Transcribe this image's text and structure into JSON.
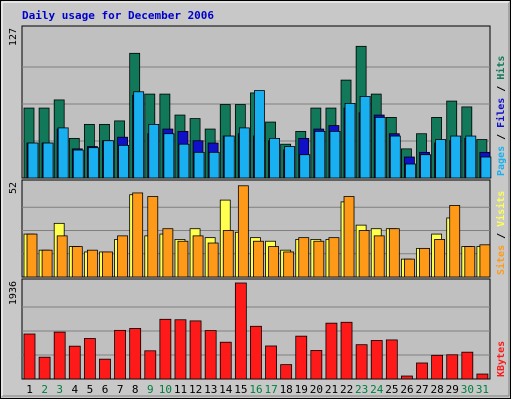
{
  "chart_data": {
    "type": "bar",
    "title": "Daily usage for December 2006",
    "days": [
      "1",
      "2",
      "3",
      "4",
      "5",
      "6",
      "7",
      "8",
      "9",
      "10",
      "11",
      "12",
      "13",
      "14",
      "15",
      "16",
      "17",
      "18",
      "19",
      "20",
      "21",
      "22",
      "23",
      "24",
      "25",
      "26",
      "27",
      "28",
      "29",
      "30",
      "31"
    ],
    "weekend_days": [
      "2",
      "3",
      "9",
      "10",
      "16",
      "17",
      "23",
      "24",
      "30",
      "31"
    ],
    "panels": [
      {
        "id": "hits",
        "ymax_label": "127",
        "ymax": 127,
        "series": [
          {
            "name": "Hits",
            "color": "#12785a",
            "values": [
              60,
              60,
              67,
              34,
              46,
              46,
              49,
              107,
              72,
              72,
              54,
              51,
              42,
              63,
              63,
              73,
              48,
              29,
              40,
              60,
              60,
              84,
              113,
              72,
              52,
              25,
              38,
              52,
              66,
              61,
              33
            ]
          },
          {
            "name": "Files",
            "color": "#1010c8",
            "values": [
              30,
              30,
              42,
              25,
              27,
              32,
              35,
              71,
              38,
              42,
              40,
              32,
              30,
              36,
              38,
              36,
              32,
              24,
              34,
              42,
              45,
              60,
              56,
              54,
              38,
              18,
              22,
              30,
              32,
              34,
              22
            ]
          },
          {
            "name": "Pages",
            "color": "#18b0f0",
            "values": [
              30,
              30,
              43,
              24,
              26,
              32,
              28,
              74,
              46,
              38,
              29,
              22,
              22,
              36,
              43,
              75,
              34,
              27,
              20,
              40,
              40,
              64,
              70,
              52,
              36,
              12,
              20,
              33,
              36,
              36,
              18
            ]
          }
        ],
        "legend": [
          {
            "label": "Pages",
            "color": "#18b0f0"
          },
          {
            "label": "Files",
            "color": "#1010c8"
          },
          {
            "label": "Hits",
            "color": "#12785a"
          }
        ]
      },
      {
        "id": "visits",
        "ymax_label": "52",
        "ymax": 52,
        "series": [
          {
            "name": "Visits",
            "color": "#ffff50",
            "values": [
              24,
              15,
              30,
              17,
              14,
              14,
              21,
              46,
              23,
              24,
              21,
              27,
              22,
              43,
              25,
              22,
              20,
              15,
              21,
              21,
              21,
              42,
              29,
              27,
              27,
              10,
              16,
              24,
              33,
              17,
              17
            ]
          },
          {
            "name": "Sites",
            "color": "#ff9a18",
            "values": [
              24,
              15,
              23,
              17,
              15,
              14,
              23,
              47,
              45,
              27,
              20,
              23,
              19,
              26,
              51,
              20,
              17,
              14,
              22,
              20,
              22,
              45,
              26,
              23,
              27,
              10,
              16,
              21,
              40,
              17,
              18
            ]
          }
        ],
        "legend": [
          {
            "label": "Sites",
            "color": "#ff9a18"
          },
          {
            "label": "Visits",
            "color": "#ffff50"
          }
        ]
      },
      {
        "id": "kbytes",
        "ymax_label": "1936",
        "ymax": 1936,
        "series": [
          {
            "name": "KBytes",
            "color": "#ff1a1a",
            "values": [
              907,
              440,
              945,
              662,
              817,
              400,
              981,
              1019,
              569,
              1204,
              1195,
              1172,
              977,
              742,
              1936,
              1063,
              666,
              290,
              864,
              576,
              1126,
              1144,
              692,
              777,
              788,
              60,
              323,
              478,
              489,
              541,
              100
            ]
          }
        ],
        "legend": [
          {
            "label": "KBytes",
            "color": "#ff1a1a"
          }
        ]
      }
    ],
    "colors": {
      "title_text": "#0000cc",
      "weekday_label": "#000000",
      "weekend_label": "#008040",
      "plot_bg": "#c0c0c0",
      "frame_bg": "#c8c8c8",
      "grid": "#808080"
    }
  }
}
